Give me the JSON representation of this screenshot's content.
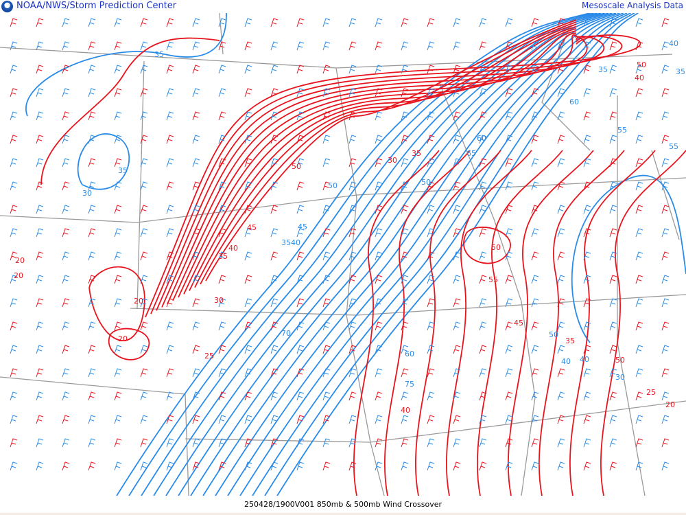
{
  "header": {
    "title": "NOAA/NWS/Storm Prediction Center",
    "right_title": "Mesoscale Analysis Data",
    "logo": "noaa-logo"
  },
  "footer": {
    "caption": "250428/1900V001 850mb & 500mb Wind Crossover"
  },
  "colors": {
    "wind_850mb": "#e8141e",
    "wind_500mb": "#2a8be8",
    "borders": "#9a9a9a",
    "title": "#1a33c8"
  },
  "map": {
    "red_labels": [
      "20",
      "50",
      "45",
      "40",
      "35",
      "30",
      "20",
      "20",
      "20",
      "25",
      "30",
      "35",
      "50",
      "55",
      "45",
      "40",
      "20",
      "25",
      "50",
      "35",
      "50",
      "40"
    ],
    "blue_labels": [
      "35",
      "30",
      "35",
      "50",
      "45",
      "3540",
      "70",
      "60",
      "50",
      "65",
      "60",
      "75",
      "50",
      "40",
      "30",
      "55",
      "35",
      "40",
      "55",
      "60",
      "35",
      "40"
    ]
  }
}
